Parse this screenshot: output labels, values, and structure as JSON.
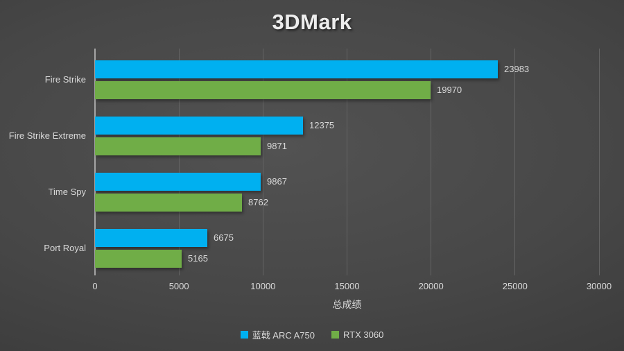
{
  "chart_data": {
    "type": "bar",
    "orientation": "horizontal",
    "title": "3DMark",
    "categories": [
      "Fire Strike",
      "Fire Strike Extreme",
      "Time Spy",
      "Port Royal"
    ],
    "series": [
      {
        "name": "蓝戟 ARC A750",
        "color": "#00b0f0",
        "values": [
          23983,
          12375,
          9867,
          6675
        ]
      },
      {
        "name": "RTX 3060",
        "color": "#70ad47",
        "values": [
          19970,
          9871,
          8762,
          5165
        ]
      }
    ],
    "xlabel": "总成绩",
    "xlim": [
      0,
      30000
    ],
    "xticks": [
      0,
      5000,
      10000,
      15000,
      20000,
      25000,
      30000
    ],
    "grid": true,
    "value_labels": true,
    "legend_position": "bottom"
  },
  "colors": {
    "background_center": "#4f4f4f",
    "background_edge": "#2b2b2b",
    "text": "#d9d9d9",
    "title_text": "#ededed",
    "axis_line": "#a6a6a6",
    "gridline": "#646464"
  }
}
